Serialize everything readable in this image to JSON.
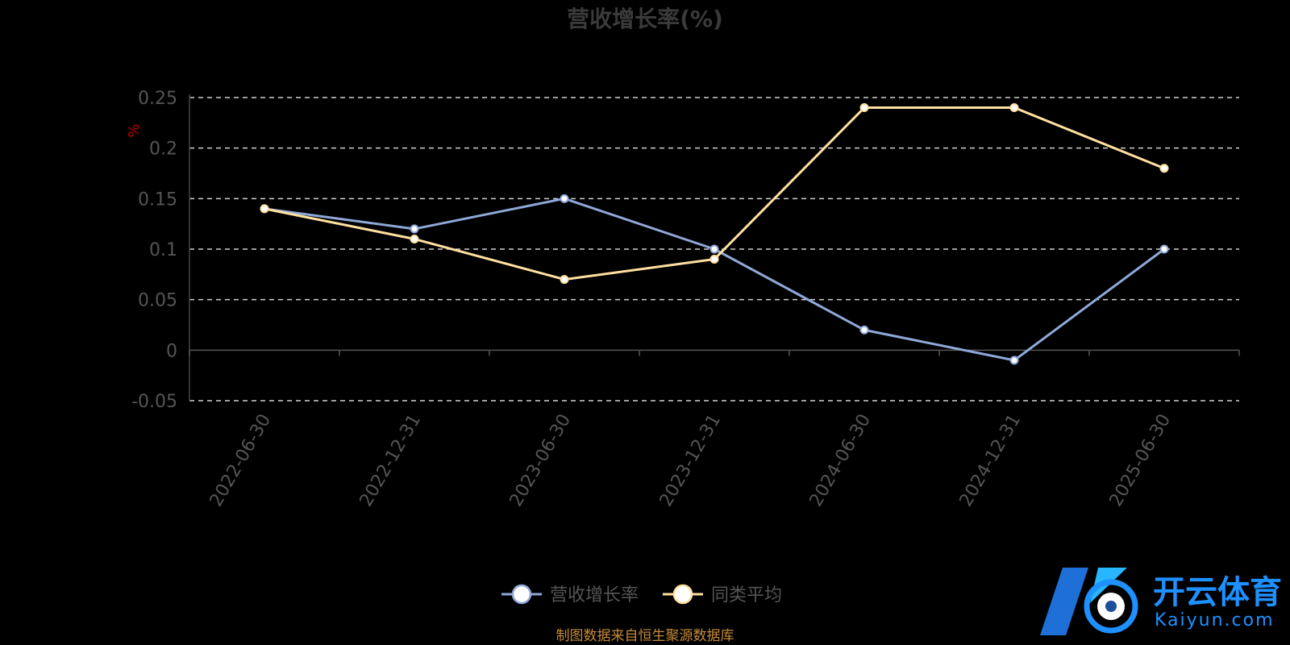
{
  "chart_data": {
    "type": "line",
    "title": "营收增长率(%)",
    "unit_label": "%",
    "categories": [
      "2022-06-30",
      "2022-12-31",
      "2023-06-30",
      "2023-12-31",
      "2024-06-30",
      "2024-12-31",
      "2025-06-30"
    ],
    "y_ticks": [
      "0.25",
      "0.2",
      "0.15",
      "0.1",
      "0.05",
      "0",
      "-0.05"
    ],
    "ylim": [
      -0.05,
      0.25
    ],
    "grid": true,
    "legend_position": "bottom-center",
    "series": [
      {
        "name": "营收增长率",
        "color": "#8fa8d8",
        "values": [
          0.14,
          0.12,
          0.15,
          0.1,
          0.02,
          -0.01,
          0.1
        ]
      },
      {
        "name": "同类平均",
        "color": "#ffe0a0",
        "values": [
          0.14,
          0.11,
          0.07,
          0.09,
          0.24,
          0.24,
          0.18
        ]
      }
    ]
  },
  "footer": {
    "source": "制图数据来自恒生聚源数据库"
  },
  "watermark": {
    "text_cn": "开云体育",
    "text_en": "Kaiyun.com",
    "icon": "soccer-ball-icon"
  }
}
